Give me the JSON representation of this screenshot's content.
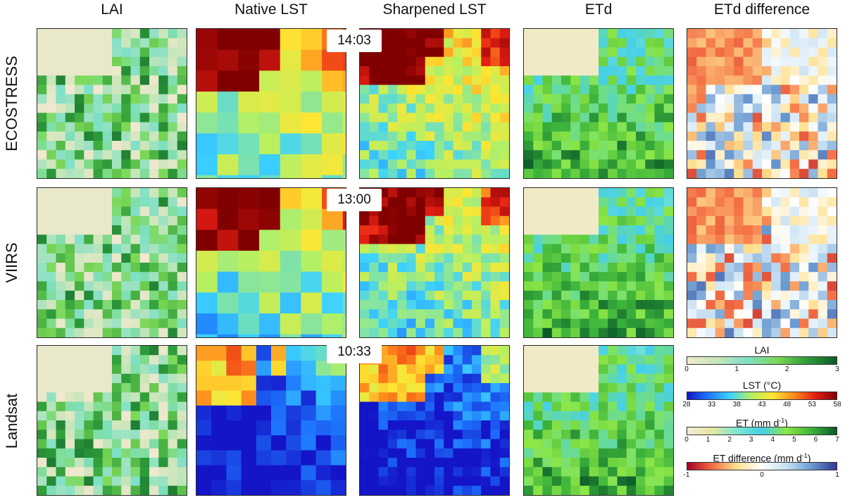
{
  "columns": [
    "LAI",
    "Native LST",
    "Sharpened LST",
    "ETd",
    "ETd difference"
  ],
  "rows": [
    {
      "label": "ECOSTRESS",
      "time": "14:03"
    },
    {
      "label": "VIIRS",
      "time": "13:00"
    },
    {
      "label": "Landsat",
      "time": "10:33"
    }
  ],
  "legends": {
    "lai": {
      "title": "LAI",
      "ticks": [
        "0",
        "1",
        "2",
        "3"
      ]
    },
    "lst": {
      "title": "LST (°C)",
      "ticks": [
        "28",
        "33",
        "38",
        "43",
        "48",
        "53",
        "58"
      ]
    },
    "et": {
      "title": "ET (mm d",
      "superscript": "-1",
      "closing": ")",
      "ticks": [
        "0",
        "1",
        "2",
        "3",
        "4",
        "5",
        "6",
        "7"
      ]
    },
    "etdiff": {
      "title": "ET difference (mm d",
      "superscript": "-1",
      "closing": ")",
      "ticks": [
        "-1",
        "0",
        "1"
      ]
    }
  },
  "colors": {
    "lai_scale": [
      "#f3e8d0",
      "#c6e6b8",
      "#7fe0c8",
      "#7ed957",
      "#2e9e3a",
      "#0e5a2a"
    ],
    "lst_scale": [
      "#1414c8",
      "#1e78ff",
      "#3cd2ff",
      "#b4f064",
      "#ffe632",
      "#ff8c1e",
      "#e61e14",
      "#800000"
    ],
    "et_scale": [
      "#f5ecd6",
      "#e6e6a0",
      "#7ee6d2",
      "#46d0e6",
      "#8ce646",
      "#3cb43c",
      "#0a5a28"
    ],
    "diff_scale": [
      "#a50026",
      "#f46d43",
      "#fee090",
      "#ffffff",
      "#c6e0f2",
      "#6a9ad0",
      "#313695"
    ]
  }
}
